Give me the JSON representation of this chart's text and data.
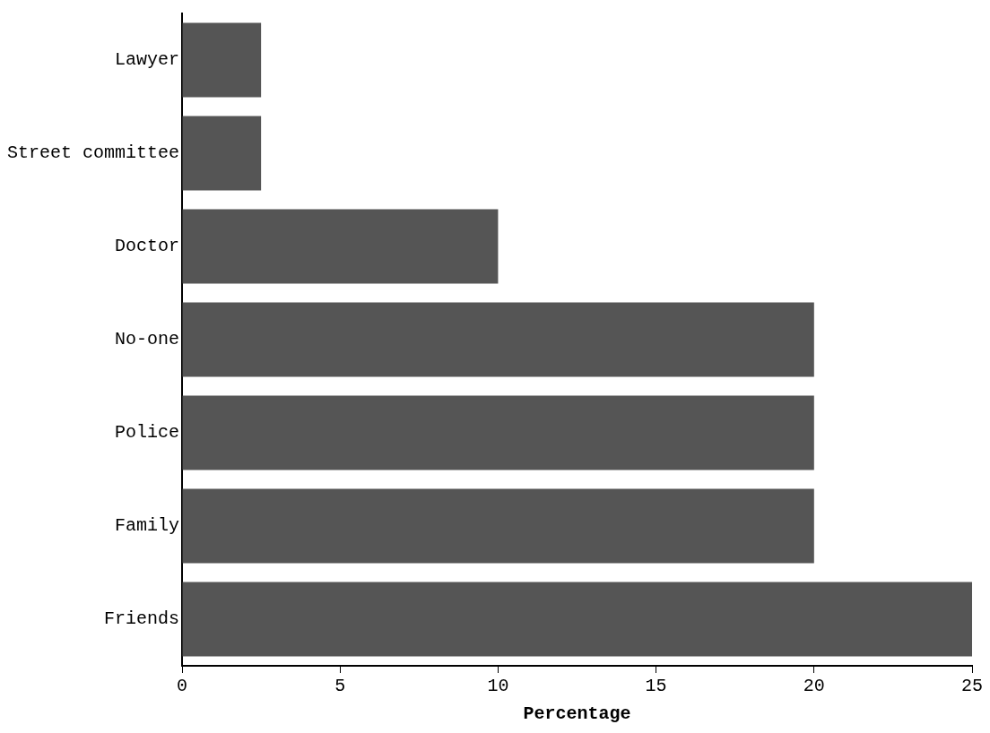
{
  "chart_data": {
    "type": "bar",
    "orientation": "horizontal",
    "xlabel": "Percentage",
    "categories": [
      "Lawyer",
      "Street committee",
      "Doctor",
      "No-one",
      "Police",
      "Family",
      "Friends"
    ],
    "values": [
      2.5,
      2.5,
      10,
      20,
      20,
      20,
      25
    ],
    "color": "#555555",
    "xlim": [
      0,
      25
    ],
    "xticks": [
      0,
      5,
      10,
      15,
      20,
      25
    ],
    "grid": false,
    "legend": false
  }
}
